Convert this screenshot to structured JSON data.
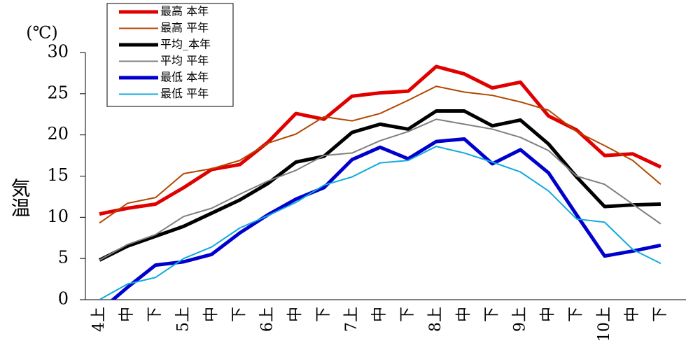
{
  "chart_data": {
    "type": "line",
    "unit": "(℃)",
    "y_label": "気温",
    "categories": [
      "4上",
      "中",
      "下",
      "5上",
      "中",
      "下",
      "6上",
      "中",
      "下",
      "7上",
      "中",
      "下",
      "8上",
      "中",
      "下",
      "9上",
      "中",
      "下",
      "10上",
      "中",
      "下"
    ],
    "ylim": [
      0,
      30
    ],
    "yticks": [
      0,
      5,
      10,
      15,
      20,
      25,
      30
    ],
    "series": [
      {
        "name": "最高 本年",
        "color": "#e00000",
        "width": 5,
        "values": [
          10.4,
          11.1,
          11.6,
          13.6,
          15.8,
          16.4,
          19.1,
          22.6,
          21.9,
          24.7,
          25.1,
          25.3,
          28.3,
          27.4,
          25.7,
          26.4,
          22.3,
          20.6,
          17.5,
          17.7,
          16.1
        ]
      },
      {
        "name": "最高 平年",
        "color": "#b34700",
        "width": 2,
        "values": [
          9.3,
          11.7,
          12.4,
          15.3,
          15.9,
          16.9,
          19.0,
          20.1,
          22.2,
          21.7,
          22.6,
          24.2,
          25.9,
          25.2,
          24.8,
          24.0,
          23.0,
          20.4,
          18.7,
          16.9,
          14.0
        ]
      },
      {
        "name": "平均_本年",
        "color": "#000000",
        "width": 5,
        "values": [
          4.8,
          6.5,
          7.7,
          8.9,
          10.5,
          12.1,
          14.1,
          16.7,
          17.4,
          20.3,
          21.3,
          20.7,
          22.9,
          22.9,
          21.1,
          21.8,
          18.9,
          14.9,
          11.3,
          11.5,
          11.6
        ]
      },
      {
        "name": "平均 平年",
        "color": "#808080",
        "width": 2,
        "values": [
          4.8,
          6.7,
          7.9,
          10.1,
          11.1,
          12.8,
          14.4,
          15.7,
          17.5,
          17.8,
          19.3,
          20.4,
          21.9,
          21.3,
          20.7,
          19.7,
          18.1,
          15.0,
          14.0,
          11.6,
          9.2
        ]
      },
      {
        "name": "最低 本年",
        "color": "#0000cc",
        "width": 5,
        "values": [
          -1.4,
          1.5,
          4.2,
          4.6,
          5.5,
          8.1,
          10.3,
          12.2,
          13.6,
          17.0,
          18.5,
          17.1,
          19.2,
          19.5,
          16.5,
          18.2,
          15.4,
          10.3,
          5.3,
          5.9,
          6.6
        ]
      },
      {
        "name": "最低 平年",
        "color": "#11aadd",
        "width": 2,
        "values": [
          0.0,
          1.9,
          2.7,
          5.0,
          6.4,
          8.7,
          10.2,
          11.8,
          13.9,
          14.9,
          16.6,
          16.9,
          18.6,
          17.8,
          16.7,
          15.5,
          13.2,
          9.8,
          9.4,
          6.1,
          4.4
        ]
      }
    ]
  }
}
